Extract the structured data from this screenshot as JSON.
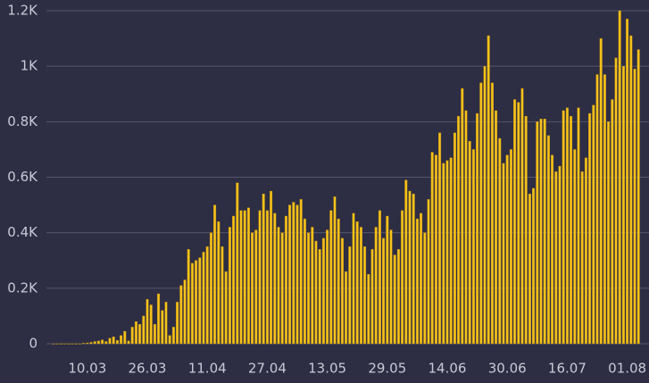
{
  "chart_data": {
    "type": "bar",
    "categories": [
      null,
      null,
      null,
      null,
      null,
      null,
      null,
      null,
      null,
      "10.03",
      null,
      null,
      null,
      null,
      null,
      null,
      null,
      null,
      null,
      null,
      null,
      null,
      null,
      null,
      null,
      "26.03",
      null,
      null,
      null,
      null,
      null,
      null,
      null,
      null,
      null,
      null,
      null,
      null,
      null,
      null,
      null,
      "11.04",
      null,
      null,
      null,
      null,
      null,
      null,
      null,
      null,
      null,
      null,
      null,
      null,
      null,
      null,
      null,
      "27.04",
      null,
      null,
      null,
      null,
      null,
      null,
      null,
      null,
      null,
      null,
      null,
      null,
      null,
      null,
      null,
      "13.05",
      null,
      null,
      null,
      null,
      null,
      null,
      null,
      null,
      null,
      null,
      null,
      null,
      null,
      null,
      null,
      "29.05",
      null,
      null,
      null,
      null,
      null,
      null,
      null,
      null,
      null,
      null,
      null,
      null,
      null,
      null,
      null,
      "14.06",
      null,
      null,
      null,
      null,
      null,
      null,
      null,
      null,
      null,
      null,
      null,
      null,
      null,
      null,
      null,
      "30.06",
      null,
      null,
      null,
      null,
      null,
      null,
      null,
      null,
      null,
      null,
      null,
      null,
      null,
      null,
      null,
      "16.07",
      null,
      null,
      null,
      null,
      null,
      null,
      null,
      null,
      null,
      null,
      null,
      null,
      null,
      null,
      null,
      "01.08",
      null,
      null,
      null
    ],
    "values": [
      0,
      0,
      0,
      0,
      0,
      0,
      0,
      0,
      2,
      3,
      5,
      8,
      10,
      14,
      8,
      20,
      25,
      12,
      30,
      45,
      10,
      60,
      80,
      70,
      100,
      160,
      140,
      70,
      180,
      120,
      150,
      30,
      60,
      150,
      210,
      230,
      340,
      290,
      300,
      310,
      330,
      350,
      400,
      500,
      440,
      350,
      260,
      420,
      460,
      580,
      480,
      480,
      490,
      400,
      410,
      480,
      540,
      480,
      550,
      470,
      420,
      400,
      460,
      500,
      510,
      500,
      520,
      450,
      400,
      420,
      370,
      340,
      380,
      410,
      480,
      530,
      450,
      380,
      260,
      350,
      470,
      440,
      420,
      350,
      250,
      340,
      420,
      480,
      380,
      460,
      410,
      320,
      340,
      480,
      590,
      550,
      540,
      450,
      470,
      400,
      520,
      690,
      680,
      760,
      650,
      660,
      670,
      760,
      820,
      920,
      840,
      730,
      700,
      830,
      940,
      1000,
      1110,
      940,
      840,
      740,
      650,
      680,
      700,
      880,
      870,
      920,
      820,
      540,
      560,
      800,
      810,
      810,
      750,
      680,
      620,
      640,
      840,
      850,
      820,
      700,
      850,
      620,
      670,
      830,
      860,
      970,
      1100,
      970,
      800,
      880,
      1030,
      1200,
      1000,
      1170,
      1110,
      990,
      1060
    ],
    "color": "#f7c31c",
    "ylim": [
      0,
      1200
    ],
    "yticks": [
      0,
      {
        "value": 200,
        "label": "0.2K"
      },
      {
        "value": 400,
        "label": "0.4K"
      },
      {
        "value": 600,
        "label": "0.6K"
      },
      {
        "value": 800,
        "label": "0.8K"
      },
      {
        "value": 1000,
        "label": "1K"
      },
      {
        "value": 1200,
        "label": "1.2K"
      }
    ],
    "grid": true
  }
}
